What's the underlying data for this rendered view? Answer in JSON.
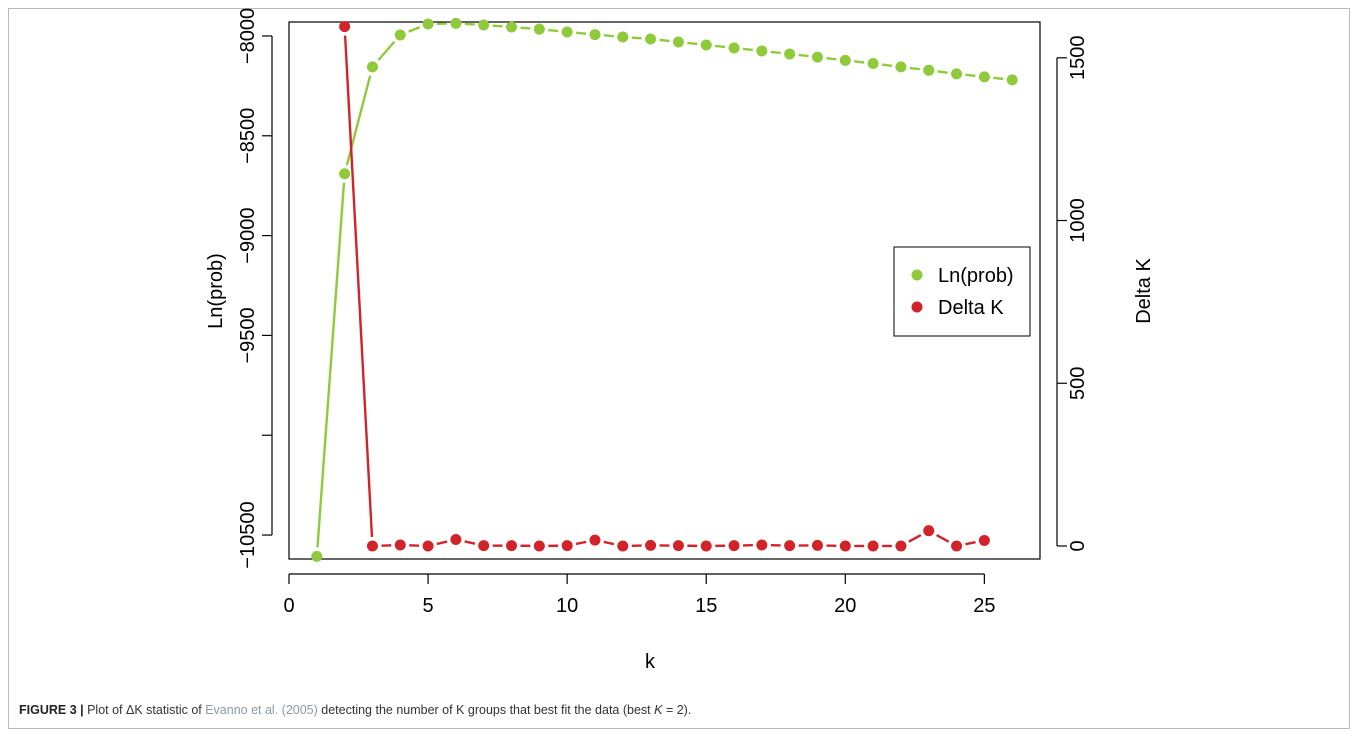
{
  "chart_data": {
    "type": "scatter",
    "xlabel": "k",
    "ylabel_left": "Ln(prob)",
    "ylabel_right": "Delta K",
    "x_ticks": [
      "0",
      "5",
      "10",
      "15",
      "20",
      "25"
    ],
    "y_left_ticks": [
      "-10500",
      "-9500",
      "-9000",
      "-8500",
      "-8000"
    ],
    "y_left_extra_tick_value": -10000,
    "y_right_ticks": [
      "0",
      "500",
      "1000",
      "1500"
    ],
    "xlim": [
      0,
      27
    ],
    "ylim_left": [
      -10620,
      -7930
    ],
    "ylim_right": [
      -40,
      1610
    ],
    "legend": {
      "position": "center-right",
      "entries": [
        "Ln(prob)",
        "Delta K"
      ]
    },
    "grid": false,
    "series": [
      {
        "name": "Ln(prob)",
        "axis": "left",
        "color": "#8fca3a",
        "x": [
          1,
          2,
          3,
          4,
          5,
          6,
          7,
          8,
          9,
          10,
          11,
          12,
          13,
          14,
          15,
          16,
          17,
          18,
          19,
          20,
          21,
          22,
          23,
          24,
          25,
          26
        ],
        "y": [
          -10607,
          -8690,
          -8155,
          -7995,
          -7940,
          -7937,
          -7945,
          -7955,
          -7966,
          -7980,
          -7993,
          -8005,
          -8015,
          -8030,
          -8045,
          -8060,
          -8075,
          -8090,
          -8106,
          -8122,
          -8138,
          -8155,
          -8172,
          -8190,
          -8205,
          -8220
        ]
      },
      {
        "name": "Delta K",
        "axis": "right",
        "color": "#d2232a",
        "x": [
          2,
          3,
          4,
          5,
          6,
          7,
          8,
          9,
          10,
          11,
          12,
          13,
          14,
          15,
          16,
          17,
          18,
          19,
          20,
          21,
          22,
          23,
          24,
          25
        ],
        "y": [
          1596,
          0,
          3,
          0,
          20,
          1,
          1,
          0,
          1,
          18,
          0,
          2,
          1,
          0,
          1,
          3,
          1,
          2,
          0,
          0,
          0,
          47,
          0,
          17
        ]
      }
    ]
  },
  "caption": {
    "figure_label": "FIGURE 3 |",
    "text_before_ref": " Plot of ΔK statistic of ",
    "ref": "Evanno et al. (2005)",
    "text_after_ref": " detecting the number of K groups that best fit the data (best ",
    "best_k_var": "K",
    "best_k_value": " = 2)."
  }
}
